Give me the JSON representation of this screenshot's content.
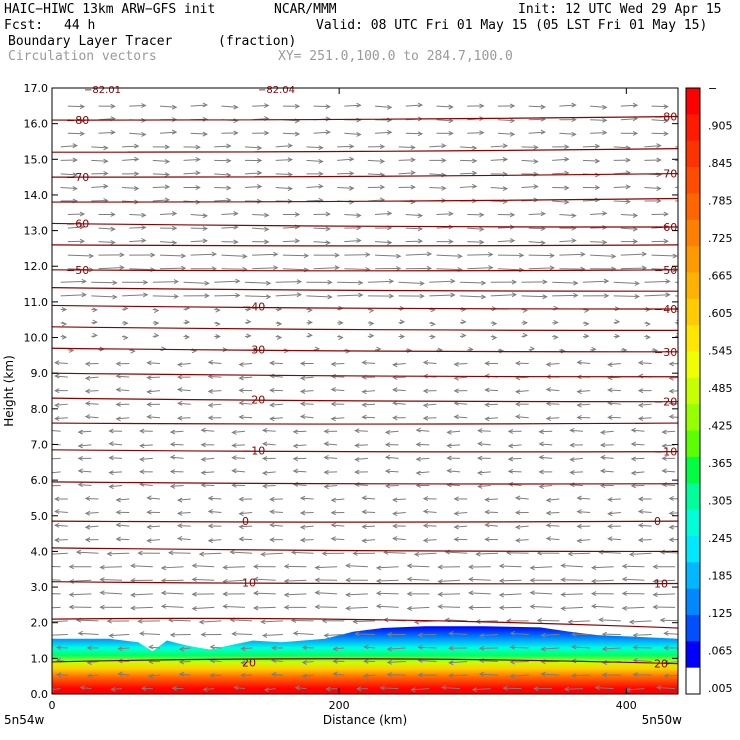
{
  "header": {
    "model": "HAIC−HIWC 13km ARW−GFS init",
    "org": "NCAR/MMM",
    "init": "Init: 12 UTC Wed 29 Apr 15",
    "fcst_label": "Fcst:",
    "fcst_value": "44 h",
    "valid": "Valid: 08 UTC Fri 01 May 15 (05 LST Fri 01 May 15)",
    "field": "Boundary Layer Tracer",
    "field_units": "(fraction)",
    "vectors": "Circulation vectors",
    "xsec": "XY= 251.0,100.0 to 284.7,100.0"
  },
  "chart_data": {
    "type": "area",
    "title": "Boundary Layer Tracer",
    "xlabel": "Distance (km)",
    "ylabel": "Height (km)",
    "xlim": [
      0,
      436
    ],
    "ylim": [
      0,
      17
    ],
    "x_ticks": [
      0,
      200,
      400
    ],
    "x_tick_labels": [
      "0",
      "200",
      "400"
    ],
    "y_ticks": [
      0,
      1,
      2,
      3,
      4,
      5,
      6,
      7,
      8,
      9,
      10,
      11,
      12,
      13,
      14,
      15,
      16,
      17
    ],
    "y_tick_labels": [
      "0.0",
      "1.0",
      "2.0",
      "3.0",
      "4.0",
      "5.0",
      "6.0",
      "7.0",
      "8.0",
      "9.0",
      "10.0",
      "11.0",
      "12.0",
      "13.0",
      "14.0",
      "15.0",
      "16.0",
      "17.0"
    ],
    "endpoint_labels": [
      "5n54w",
      "5n50w"
    ],
    "colorbar": {
      "labels": [
        "−",
        ".905",
        ".845",
        ".785",
        ".725",
        ".665",
        ".605",
        ".545",
        ".485",
        ".425",
        ".365",
        ".305",
        ".245",
        ".185",
        ".125",
        ".065",
        ".005"
      ],
      "colors": [
        "#ff0000",
        "#ff1a00",
        "#ff3300",
        "#ff4d00",
        "#ff6600",
        "#ff8000",
        "#ff9900",
        "#ffb300",
        "#ffcc00",
        "#ffe600",
        "#f0ff00",
        "#c8ff00",
        "#96ff00",
        "#5aff00",
        "#00ff40",
        "#00ff9a",
        "#00ffd8",
        "#00e8ff",
        "#00b8ff",
        "#0088ff",
        "#0050ff",
        "#0000ff",
        "#ffffff"
      ]
    },
    "tracer_top_km": {
      "x": [
        0,
        40,
        60,
        70,
        80,
        95,
        110,
        140,
        160,
        190,
        210,
        230,
        260,
        300,
        340,
        360,
        380,
        410,
        436
      ],
      "y": [
        1.55,
        1.55,
        1.45,
        1.2,
        1.5,
        1.35,
        1.25,
        1.5,
        1.45,
        1.55,
        1.75,
        1.85,
        1.9,
        1.9,
        1.87,
        1.75,
        1.65,
        1.6,
        1.55
      ]
    },
    "contours": [
      {
        "label": "−80",
        "y_km": [
          16.1,
          16.2
        ]
      },
      {
        "label": "",
        "y_km": [
          15.2,
          15.3
        ]
      },
      {
        "label": "−70",
        "y_km": [
          14.5,
          14.6
        ]
      },
      {
        "label": "",
        "y_km": [
          13.8,
          13.9
        ]
      },
      {
        "label": "−60",
        "y_km": [
          13.2,
          13.1
        ]
      },
      {
        "label": "",
        "y_km": [
          12.6,
          12.6
        ]
      },
      {
        "label": "−50",
        "y_km": [
          11.9,
          11.9
        ]
      },
      {
        "label": "",
        "y_km": [
          11.4,
          11.3
        ]
      },
      {
        "label": "−40",
        "y_km": [
          10.9,
          10.8
        ]
      },
      {
        "label": "",
        "y_km": [
          10.3,
          10.2
        ]
      },
      {
        "label": "−30",
        "y_km": [
          9.7,
          9.6
        ]
      },
      {
        "label": "",
        "y_km": [
          9.0,
          8.9
        ]
      },
      {
        "label": "−20",
        "y_km": [
          8.3,
          8.2
        ]
      },
      {
        "label": "",
        "y_km": [
          7.6,
          7.6
        ]
      },
      {
        "label": "−10",
        "y_km": [
          6.85,
          6.8
        ]
      },
      {
        "label": "",
        "y_km": [
          5.95,
          5.9
        ]
      },
      {
        "label": "0",
        "y_km": [
          4.85,
          4.85
        ]
      },
      {
        "label": "",
        "y_km": [
          4.1,
          4.0
        ]
      },
      {
        "label": "10",
        "y_km": [
          3.15,
          3.1
        ]
      },
      {
        "label": "",
        "y_km": [
          2.1,
          1.85
        ]
      },
      {
        "label": "20",
        "y_km": [
          0.9,
          0.85
        ]
      }
    ],
    "wind_bands": [
      {
        "z_min": 2.0,
        "z_max": 4.2,
        "u": -1.2
      },
      {
        "z_min": 4.2,
        "z_max": 9.4,
        "u": -0.7
      },
      {
        "z_min": 9.4,
        "z_max": 11.0,
        "u": 0.3
      },
      {
        "z_min": 11.0,
        "z_max": 12.5,
        "u": 1.4
      },
      {
        "z_min": 12.5,
        "z_max": 16.8,
        "u": 0.9
      }
    ],
    "partial_top_labels": [
      "−82.01",
      "−82.04"
    ]
  }
}
